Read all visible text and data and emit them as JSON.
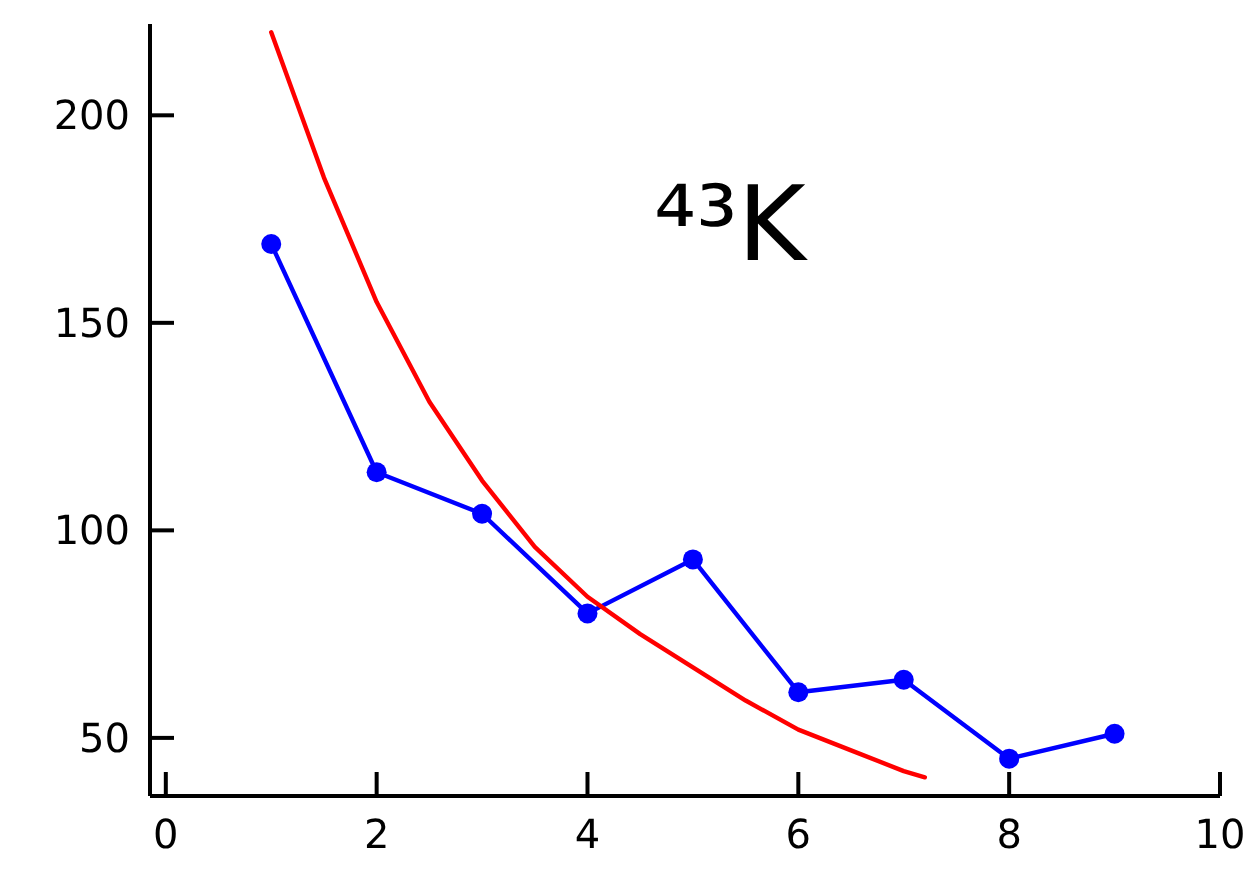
{
  "chart_data": {
    "type": "line",
    "xlim": [
      -0.15,
      10
    ],
    "ylim": [
      36,
      222
    ],
    "xticks": [
      0,
      2,
      4,
      6,
      8,
      10
    ],
    "yticks": [
      50,
      100,
      150,
      200
    ],
    "grid": false,
    "annotations": [
      "⁴³K"
    ],
    "series": [
      {
        "color": "#0000ff",
        "marker": "circle",
        "x": [
          1,
          2,
          3,
          4,
          5,
          6,
          7,
          8,
          9
        ],
        "values": [
          169,
          114,
          104,
          80,
          93,
          61,
          64,
          45,
          51
        ]
      },
      {
        "color": "#ff0000",
        "marker": "none",
        "x": [
          1,
          1.5,
          2,
          2.5,
          3,
          3.5,
          4,
          4.5,
          5,
          5.5,
          6,
          6.5,
          7,
          7.2
        ],
        "values": [
          220,
          185,
          155,
          131,
          112,
          96,
          84,
          75,
          67,
          59,
          52,
          47,
          42,
          40.5
        ]
      }
    ]
  }
}
